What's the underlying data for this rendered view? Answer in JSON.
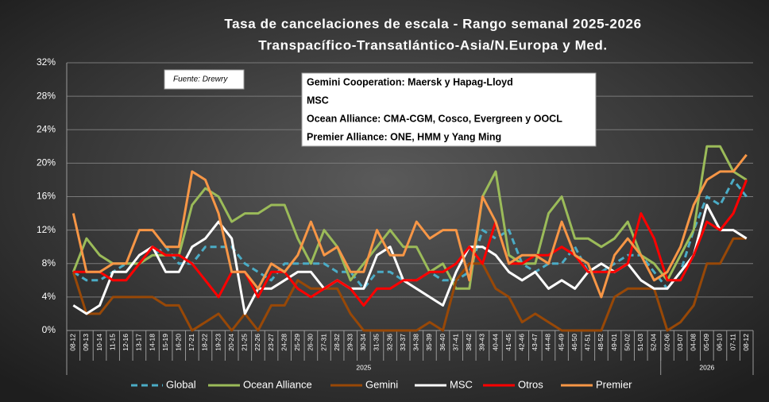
{
  "chart_data": {
    "type": "line",
    "title": "Tasa de cancelaciones de escala - Rango semanal 2025-2026",
    "subtitle": "Transpacífico-Transatlántico-Asia/N.Europa y Med.",
    "source_note": "Fuente: Drewry",
    "annotation_lines": [
      "Gemini Cooperation: Maersk y Hapag-Lloyd",
      "MSC",
      "Ocean Alliance: CMA-CGM, Cosco, Evergreen y OOCL",
      "Premier Alliance: ONE, HMM y Yang Ming"
    ],
    "categories": [
      "08-12",
      "09-13",
      "10-14",
      "11-15",
      "12-16",
      "13-17",
      "14-18",
      "15-19",
      "16-20",
      "17-21",
      "18-22",
      "19-23",
      "20-24",
      "21-25",
      "22-26",
      "23-27",
      "24-28",
      "25-29",
      "26-30",
      "27-31",
      "28-32",
      "29-33",
      "30-34",
      "31-35",
      "32-36",
      "33-37",
      "34-38",
      "35-39",
      "36-40",
      "37-41",
      "38-42",
      "39-43",
      "40-44",
      "41-45",
      "42-46",
      "43-47",
      "44-48",
      "45-49",
      "46-50",
      "47-51",
      "48-52",
      "49-01",
      "50-02",
      "51-03",
      "52-04",
      "02-06",
      "03-07",
      "04-08",
      "05-09",
      "06-10",
      "07-11",
      "08-12"
    ],
    "groups": [
      {
        "label": "2025",
        "size": 45
      },
      {
        "label": "2026",
        "size": 7
      }
    ],
    "ylim": [
      0,
      32
    ],
    "yticks": [
      {
        "value": 0,
        "label": "0%"
      },
      {
        "value": 4,
        "label": "4%"
      },
      {
        "value": 8,
        "label": "8%"
      },
      {
        "value": 12,
        "label": "12%"
      },
      {
        "value": 16,
        "label": "16%"
      },
      {
        "value": 20,
        "label": "20%"
      },
      {
        "value": 24,
        "label": "24%"
      },
      {
        "value": 28,
        "label": "28%"
      },
      {
        "value": 32,
        "label": "32%"
      }
    ],
    "grid": true,
    "series": [
      {
        "name": "Global",
        "color": "#4bacc6",
        "dashed": true,
        "values": [
          7,
          6,
          6,
          7,
          8,
          8,
          9,
          10,
          8,
          8,
          10,
          10,
          10,
          8,
          7,
          6,
          8,
          8,
          8,
          8,
          7,
          7,
          5,
          7,
          7,
          6,
          6,
          7,
          6,
          6,
          7,
          12,
          11,
          12,
          8,
          7,
          8,
          8,
          10,
          7,
          7,
          8,
          9,
          9,
          7,
          5,
          7,
          12,
          16,
          15,
          18,
          16
        ]
      },
      {
        "name": "Ocean Alliance",
        "color": "#9bbb59",
        "values": [
          7,
          11,
          9,
          8,
          8,
          8,
          9,
          9,
          9,
          15,
          17,
          16,
          13,
          14,
          14,
          15,
          15,
          11,
          8,
          12,
          10,
          6,
          8,
          10,
          12,
          10,
          10,
          7,
          8,
          5,
          5,
          16,
          19,
          9,
          8,
          8,
          14,
          16,
          11,
          11,
          10,
          11,
          13,
          9,
          8,
          6,
          9,
          12,
          22,
          22,
          19,
          18
        ]
      },
      {
        "name": "Gemini",
        "color": "#984807",
        "values": [
          7,
          2,
          2,
          4,
          4,
          4,
          4,
          3,
          3,
          0,
          1,
          2,
          0,
          2,
          0,
          3,
          3,
          6,
          5,
          5,
          5,
          2,
          0,
          0,
          0,
          0,
          0,
          1,
          0,
          6,
          8,
          8,
          5,
          4,
          1,
          2,
          1,
          0,
          0,
          0,
          0,
          4,
          5,
          5,
          5,
          0,
          1,
          3,
          8,
          8,
          11,
          11
        ]
      },
      {
        "name": "MSC",
        "color": "#ffffff",
        "values": [
          3,
          2,
          3,
          7,
          7,
          9,
          10,
          7,
          7,
          10,
          11,
          13,
          11,
          2,
          5,
          5,
          6,
          7,
          7,
          5,
          6,
          5,
          5,
          9,
          10,
          6,
          5,
          4,
          3,
          7,
          10,
          10,
          9,
          7,
          6,
          7,
          5,
          6,
          5,
          7,
          8,
          7,
          8,
          6,
          5,
          5,
          7,
          9,
          15,
          12,
          12,
          11
        ]
      },
      {
        "name": "Otros",
        "color": "#ff0000",
        "values": [
          7,
          7,
          7,
          6,
          6,
          8,
          10,
          9,
          9,
          8,
          6,
          4,
          7,
          7,
          4,
          7,
          7,
          5,
          4,
          5,
          6,
          5,
          3,
          5,
          5,
          6,
          6,
          7,
          7,
          8,
          10,
          8,
          13,
          8,
          8,
          9,
          9,
          10,
          9,
          7,
          7,
          7,
          8,
          14,
          11,
          6,
          6,
          9,
          13,
          12,
          14,
          18
        ]
      },
      {
        "name": "Premier",
        "color": "#f79646",
        "values": [
          14,
          7,
          7,
          8,
          8,
          12,
          12,
          10,
          10,
          19,
          18,
          14,
          7,
          7,
          5,
          8,
          7,
          9,
          13,
          9,
          10,
          7,
          7,
          12,
          9,
          9,
          13,
          11,
          12,
          12,
          6,
          16,
          13,
          8,
          9,
          9,
          8,
          13,
          9,
          8,
          4,
          9,
          11,
          9,
          6,
          7,
          10,
          15,
          18,
          19,
          19,
          21
        ]
      }
    ]
  }
}
